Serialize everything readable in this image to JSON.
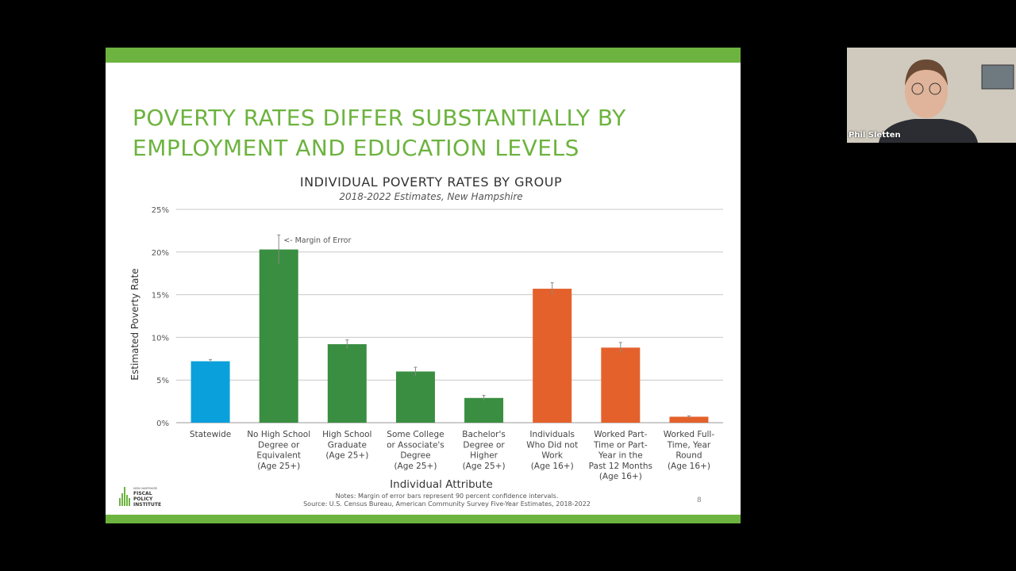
{
  "slide": {
    "title": "POVERTY RATES DIFFER SUBSTANTIALLY BY\nEMPLOYMENT AND EDUCATION LEVELS",
    "logo_text": [
      "NEW HAMPSHIRE",
      "FISCAL",
      "POLICY",
      "INSTITUTE"
    ],
    "notes": "Notes: Margin of error bars represent 90 percent confidence intervals.",
    "source": "Source: U.S. Census Bureau, American Community Survey Five-Year Estimates, 2018-2022",
    "page_number": "8",
    "accent_color": "#6db33f"
  },
  "chart_data": {
    "type": "bar",
    "title": "INDIVIDUAL POVERTY RATES BY GROUP",
    "subtitle": "2018-2022 Estimates, New Hampshire",
    "xlabel": "Individual Attribute",
    "ylabel": "Estimated Poverty Rate",
    "ylim": [
      0,
      25
    ],
    "yticks": [
      "0%",
      "5%",
      "10%",
      "15%",
      "20%",
      "25%"
    ],
    "grid": true,
    "annotation": "<- Margin of Error",
    "categories": [
      [
        "Statewide"
      ],
      [
        "No High School",
        "Degree or",
        "Equivalent",
        "(Age 25+)"
      ],
      [
        "High School",
        "Graduate",
        "(Age 25+)"
      ],
      [
        "Some College",
        "or Associate's",
        "Degree",
        "(Age 25+)"
      ],
      [
        "Bachelor's",
        "Degree or",
        "Higher",
        "(Age 25+)"
      ],
      [
        "Individuals",
        "Who Did not",
        "Work",
        "(Age 16+)"
      ],
      [
        "Worked Part-",
        "Time or Part-",
        "Year in the",
        "Past 12 Months",
        "(Age 16+)"
      ],
      [
        "Worked Full-",
        "Time, Year",
        "Round",
        "(Age 16+)"
      ]
    ],
    "values": [
      7.2,
      20.3,
      9.2,
      6.0,
      2.9,
      15.7,
      8.8,
      0.7
    ],
    "margin_of_error": [
      0.2,
      1.7,
      0.5,
      0.5,
      0.3,
      0.7,
      0.6,
      0.1
    ],
    "colors": [
      "#0aa0dc",
      "#3a8e41",
      "#3a8e41",
      "#3a8e41",
      "#3a8e41",
      "#e4612c",
      "#e4612c",
      "#e4612c"
    ]
  },
  "video": {
    "participant_name": "Phil Sletten"
  }
}
